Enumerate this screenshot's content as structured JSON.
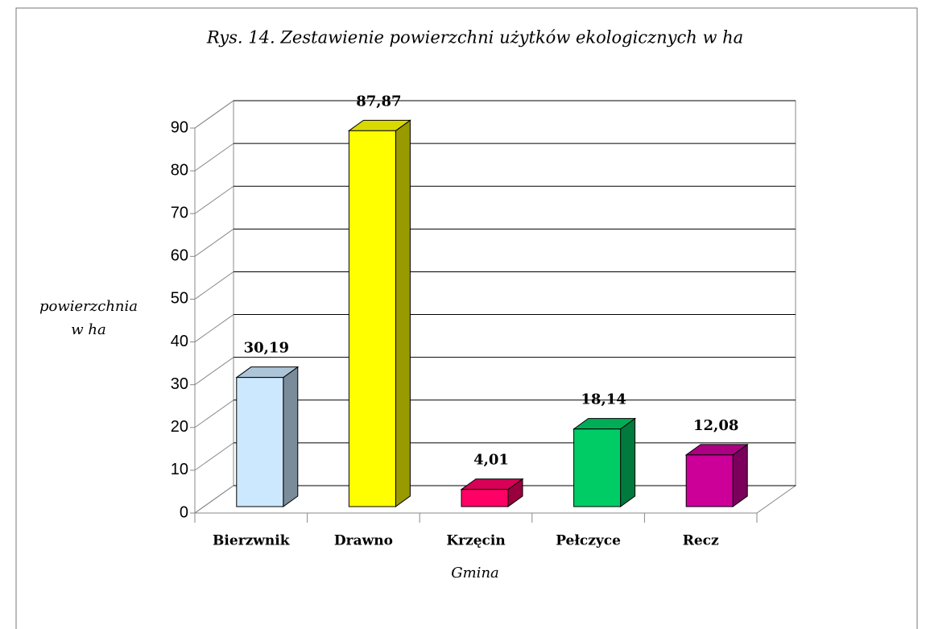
{
  "chart_data": {
    "type": "bar3d",
    "title": "Rys. 14. Zestawienie powierzchni użytków ekologicznych w ha",
    "ylabel": [
      "powierzchnia",
      "w ha"
    ],
    "xlabel": "Gmina",
    "categories": [
      "Bierzwnik",
      "Drawno",
      "Krzęcin",
      "Pełczyce",
      "Recz"
    ],
    "values": [
      30.19,
      87.87,
      4.01,
      18.14,
      12.08
    ],
    "value_labels": [
      "30,19",
      "87,87",
      "4,01",
      "18,14",
      "12,08"
    ],
    "colors": [
      "#cce8ff",
      "#ffff00",
      "#ff0066",
      "#00cc66",
      "#cc0099"
    ],
    "ylim": [
      0,
      90
    ],
    "yticks": [
      0,
      10,
      20,
      30,
      40,
      50,
      60,
      70,
      80,
      90
    ],
    "grid": true
  }
}
